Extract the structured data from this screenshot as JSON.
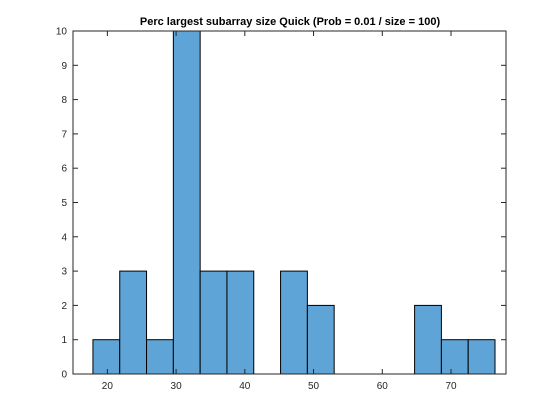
{
  "chart_data": {
    "type": "bar",
    "title": "Perc largest subarray size Quick (Prob = 0.01 / size = 100)",
    "xlabel": "",
    "ylabel": "",
    "xlim": [
      15,
      78
    ],
    "ylim": [
      0,
      10
    ],
    "xticks": [
      20,
      30,
      40,
      50,
      60,
      70
    ],
    "yticks": [
      0,
      1,
      2,
      3,
      4,
      5,
      6,
      7,
      8,
      9,
      10
    ],
    "bin_edges": [
      17.9,
      21.8,
      25.7,
      29.6,
      33.5,
      37.4,
      41.3,
      45.2,
      49.1,
      53.0,
      56.9,
      60.8,
      64.7,
      68.6,
      72.5,
      76.4
    ],
    "counts": [
      1,
      3,
      1,
      10,
      3,
      3,
      0,
      3,
      2,
      0,
      0,
      0,
      2,
      1,
      1
    ],
    "bar_color": "#5fa4d6",
    "grid": false
  }
}
